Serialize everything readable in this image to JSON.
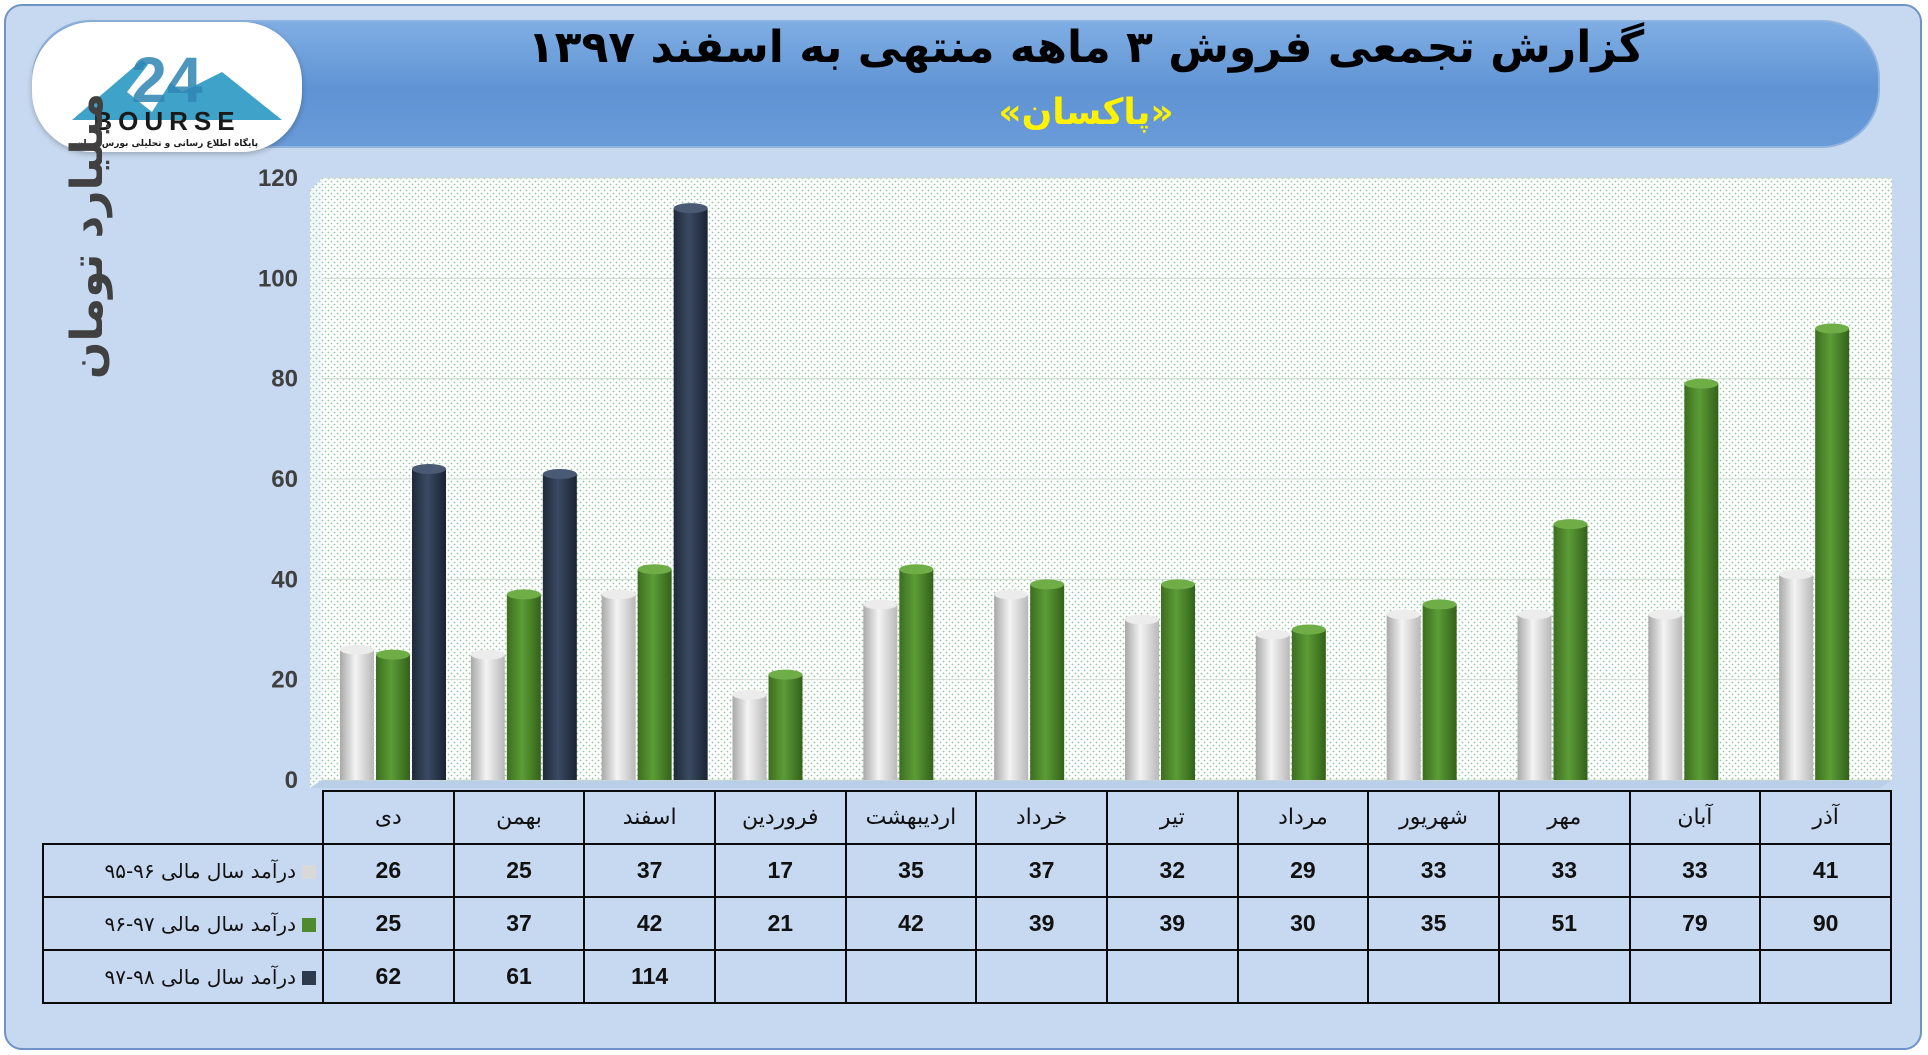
{
  "title": "گزارش تجمعی فروش ۳ ماهه منتهی به اسفند ۱۳۹۷",
  "subtitle": "«پاکسان»",
  "logo": {
    "text": "BOURSE",
    "tagline": "پایگاه اطلاع رسانی و تحلیلی بورس ایران"
  },
  "colors": {
    "series1": "#d9d9d9",
    "series2": "#4f8a2e",
    "series3": "#2e3b4f",
    "banner": "#5f93d3",
    "background": "#c7d9f0"
  },
  "chart_data": {
    "type": "bar",
    "ylabel": "میلیارد تومان",
    "ylim": [
      0,
      120
    ],
    "yticks": [
      "0",
      "20",
      "40",
      "60",
      "80",
      "100",
      "120"
    ],
    "categories": [
      "دی",
      "بهمن",
      "اسفند",
      "فروردین",
      "اردیبهشت",
      "خرداد",
      "تیر",
      "مرداد",
      "شهریور",
      "مهر",
      "آبان",
      "آذر"
    ],
    "series": [
      {
        "name": "درآمد سال مالی ۹۶-۹۵",
        "values": [
          26,
          25,
          37,
          17,
          35,
          37,
          32,
          29,
          33,
          33,
          33,
          41
        ],
        "labels": [
          "26",
          "25",
          "37",
          "17",
          "35",
          "37",
          "32",
          "29",
          "33",
          "33",
          "33",
          "41"
        ]
      },
      {
        "name": "درآمد سال مالی ۹۷-۹۶",
        "values": [
          25,
          37,
          42,
          21,
          42,
          39,
          39,
          30,
          35,
          51,
          79,
          90
        ],
        "labels": [
          "25",
          "37",
          "42",
          "21",
          "42",
          "39",
          "39",
          "30",
          "35",
          "51",
          "79",
          "90"
        ]
      },
      {
        "name": "درآمد سال مالی ۹۸-۹۷",
        "values": [
          62,
          61,
          114,
          null,
          null,
          null,
          null,
          null,
          null,
          null,
          null,
          null
        ],
        "labels": [
          "62",
          "61",
          "114",
          "",
          "",
          "",
          "",
          "",
          "",
          "",
          "",
          ""
        ]
      }
    ],
    "grid": true,
    "legend": "data-table-bottom"
  }
}
